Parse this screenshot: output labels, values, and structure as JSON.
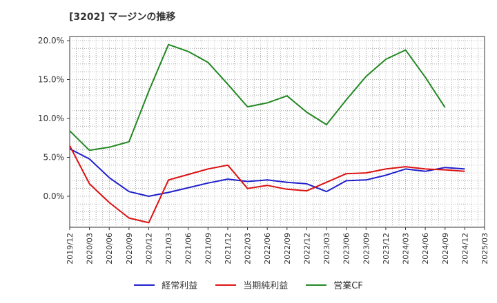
{
  "chart_data": {
    "type": "line",
    "title": "[3202]  マージンの推移",
    "xlabel": "",
    "ylabel": "",
    "x": [
      "2019/12",
      "2020/03",
      "2020/06",
      "2020/09",
      "2020/12",
      "2021/03",
      "2021/06",
      "2021/09",
      "2021/12",
      "2022/03",
      "2022/06",
      "2022/09",
      "2022/12",
      "2023/03",
      "2023/06",
      "2023/09",
      "2023/12",
      "2024/03",
      "2024/06",
      "2024/09",
      "2024/12",
      "2025/03"
    ],
    "y_ticks": [
      "20.0%",
      "15.0%",
      "10.0%",
      "5.0%",
      "0.0%"
    ],
    "y_tick_values": [
      20,
      15,
      10,
      5,
      0
    ],
    "ylim": [
      -4,
      20.5
    ],
    "grid": true,
    "legend_position": "bottom",
    "series": [
      {
        "name": "経常利益",
        "color": "#1f1fcc",
        "values": [
          6.1,
          4.8,
          2.4,
          0.6,
          0.0,
          0.5,
          1.1,
          1.7,
          2.2,
          1.9,
          2.1,
          1.8,
          1.6,
          0.6,
          2.0,
          2.1,
          2.7,
          3.5,
          3.2,
          3.7,
          3.5,
          null
        ]
      },
      {
        "name": "当期純利益",
        "color": "#dd1111",
        "values": [
          6.5,
          1.6,
          -0.8,
          -2.8,
          -3.4,
          2.1,
          2.8,
          3.5,
          4.0,
          1.0,
          1.4,
          0.9,
          0.7,
          1.8,
          2.9,
          3.0,
          3.5,
          3.8,
          3.5,
          3.4,
          3.2,
          null
        ]
      },
      {
        "name": "営業CF",
        "color": "#228822",
        "values": [
          8.4,
          5.9,
          6.3,
          7.0,
          13.5,
          19.5,
          18.6,
          17.2,
          14.4,
          11.5,
          12.0,
          12.9,
          10.8,
          9.2,
          12.4,
          15.4,
          17.6,
          18.8,
          15.3,
          11.4,
          null,
          null
        ]
      }
    ]
  }
}
